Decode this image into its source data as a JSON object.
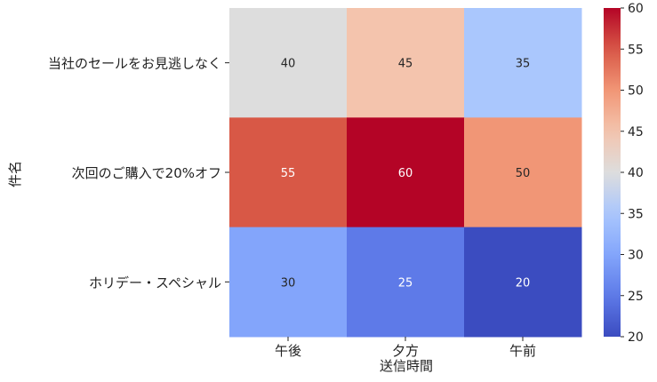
{
  "chart_data": {
    "type": "heatmap",
    "xlabel": "送信時間",
    "ylabel": "件名",
    "x_categories": [
      "午後",
      "夕方",
      "午前"
    ],
    "y_categories": [
      "当社のセールをお見逃しなく",
      "次回のご購入で20%オフ",
      "ホリデー・スペシャル"
    ],
    "values": [
      [
        40,
        45,
        35
      ],
      [
        55,
        60,
        50
      ],
      [
        30,
        25,
        20
      ]
    ],
    "colorbar": {
      "min": 20,
      "max": 60,
      "ticks": [
        "20",
        "25",
        "30",
        "35",
        "40",
        "45",
        "50",
        "55",
        "60"
      ]
    },
    "colormap": "coolwarm",
    "annotations": true
  }
}
